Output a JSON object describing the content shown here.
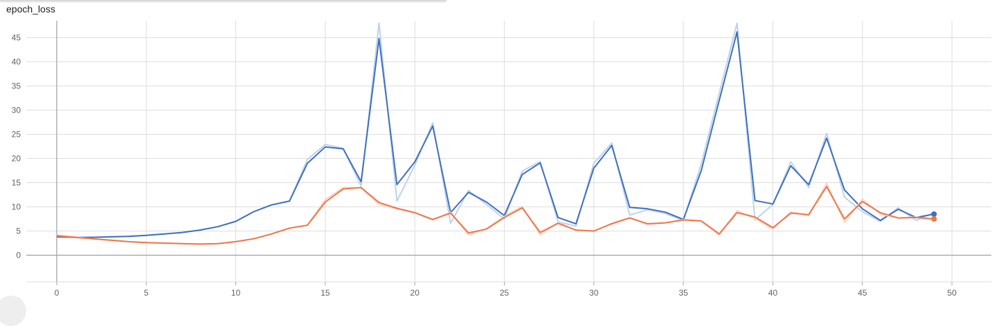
{
  "colors": {
    "series_1": "#3f6fbf",
    "series_1_raw": "#bcd3ec",
    "series_2": "#ef7548",
    "series_2_raw": "#fbd3c3",
    "grid": "#dddddd",
    "axis_zero": "#9e9e9e"
  },
  "chart_data": {
    "type": "line",
    "title": "epoch_loss",
    "xlabel": "",
    "ylabel": "",
    "xlim": [
      -1.7,
      52.2
    ],
    "ylim": [
      -5.5,
      48.5
    ],
    "x_ticks": [
      "0",
      "5",
      "10",
      "15",
      "20",
      "25",
      "30",
      "35",
      "40",
      "45",
      "50"
    ],
    "y_ticks": [
      "0",
      "5",
      "10",
      "15",
      "20",
      "25",
      "30",
      "35",
      "40",
      "45"
    ],
    "grid": true,
    "legend": "none",
    "series": [
      {
        "color_key": "series_1",
        "raw_color_key": "series_1_raw",
        "x": [
          0,
          1,
          2,
          3,
          4,
          5,
          6,
          7,
          8,
          9,
          10,
          11,
          12,
          13,
          14,
          15,
          16,
          17,
          18,
          19,
          20,
          21,
          22,
          23,
          24,
          25,
          26,
          27,
          28,
          29,
          30,
          31,
          32,
          33,
          34,
          35,
          36,
          37,
          38,
          39,
          40,
          41,
          42,
          43,
          44,
          45,
          46,
          47,
          48,
          49
        ],
        "smoothed": [
          3.8,
          3.7,
          3.7,
          3.8,
          3.9,
          4.1,
          4.4,
          4.7,
          5.2,
          5.9,
          7.0,
          9.0,
          10.4,
          11.2,
          19.0,
          22.4,
          22.0,
          15.2,
          44.8,
          14.6,
          19.3,
          26.7,
          8.8,
          13.0,
          11.0,
          8.2,
          16.7,
          19.1,
          7.8,
          6.5,
          18.0,
          22.7,
          9.9,
          9.6,
          8.9,
          7.4,
          17.5,
          32.0,
          46.2,
          11.3,
          10.6,
          18.5,
          14.6,
          24.2,
          13.5,
          9.6,
          7.2,
          9.5,
          7.8,
          8.5
        ],
        "raw": [
          3.8,
          3.7,
          3.7,
          3.8,
          3.9,
          4.1,
          4.4,
          4.7,
          5.2,
          5.9,
          7.0,
          9.0,
          10.4,
          11.2,
          19.8,
          22.9,
          22.1,
          14.3,
          48.0,
          11.2,
          18.6,
          27.4,
          6.6,
          13.4,
          10.5,
          7.5,
          17.4,
          19.4,
          6.9,
          6.0,
          19.0,
          23.2,
          8.3,
          9.4,
          8.6,
          7.2,
          18.9,
          33.5,
          48.0,
          7.3,
          10.5,
          19.3,
          14.0,
          25.2,
          12.0,
          9.0,
          7.0,
          9.8,
          7.2,
          8.8
        ]
      },
      {
        "color_key": "series_2",
        "raw_color_key": "series_2_raw",
        "x": [
          0,
          1,
          2,
          3,
          4,
          5,
          6,
          7,
          8,
          9,
          10,
          11,
          12,
          13,
          14,
          15,
          16,
          17,
          18,
          19,
          20,
          21,
          22,
          23,
          24,
          25,
          26,
          27,
          28,
          29,
          30,
          31,
          32,
          33,
          34,
          35,
          36,
          37,
          38,
          39,
          40,
          41,
          42,
          43,
          44,
          45,
          46,
          47,
          48,
          49
        ],
        "smoothed": [
          4.0,
          3.7,
          3.4,
          3.1,
          2.8,
          2.6,
          2.5,
          2.4,
          2.3,
          2.4,
          2.8,
          3.4,
          4.4,
          5.6,
          6.2,
          11.0,
          13.7,
          14.0,
          10.9,
          9.7,
          8.8,
          7.4,
          8.7,
          4.6,
          5.4,
          7.8,
          9.8,
          4.7,
          6.6,
          5.2,
          5.0,
          6.5,
          7.7,
          6.5,
          6.7,
          7.3,
          7.1,
          4.4,
          8.8,
          7.9,
          5.7,
          8.7,
          8.4,
          14.2,
          7.5,
          11.1,
          8.8,
          7.7,
          7.8,
          7.5
        ],
        "raw": [
          4.2,
          3.8,
          3.4,
          3.1,
          2.8,
          2.6,
          2.5,
          2.4,
          2.3,
          2.4,
          2.8,
          3.4,
          4.4,
          5.6,
          6.2,
          11.5,
          14.0,
          13.9,
          10.5,
          9.6,
          8.8,
          7.3,
          8.9,
          4.2,
          5.5,
          8.0,
          10.1,
          4.2,
          6.8,
          5.1,
          5.0,
          6.6,
          7.8,
          6.4,
          6.7,
          7.4,
          7.0,
          4.2,
          9.2,
          7.6,
          5.4,
          9.0,
          8.2,
          14.9,
          6.8,
          11.6,
          8.5,
          7.7,
          7.9,
          7.3
        ]
      }
    ]
  }
}
